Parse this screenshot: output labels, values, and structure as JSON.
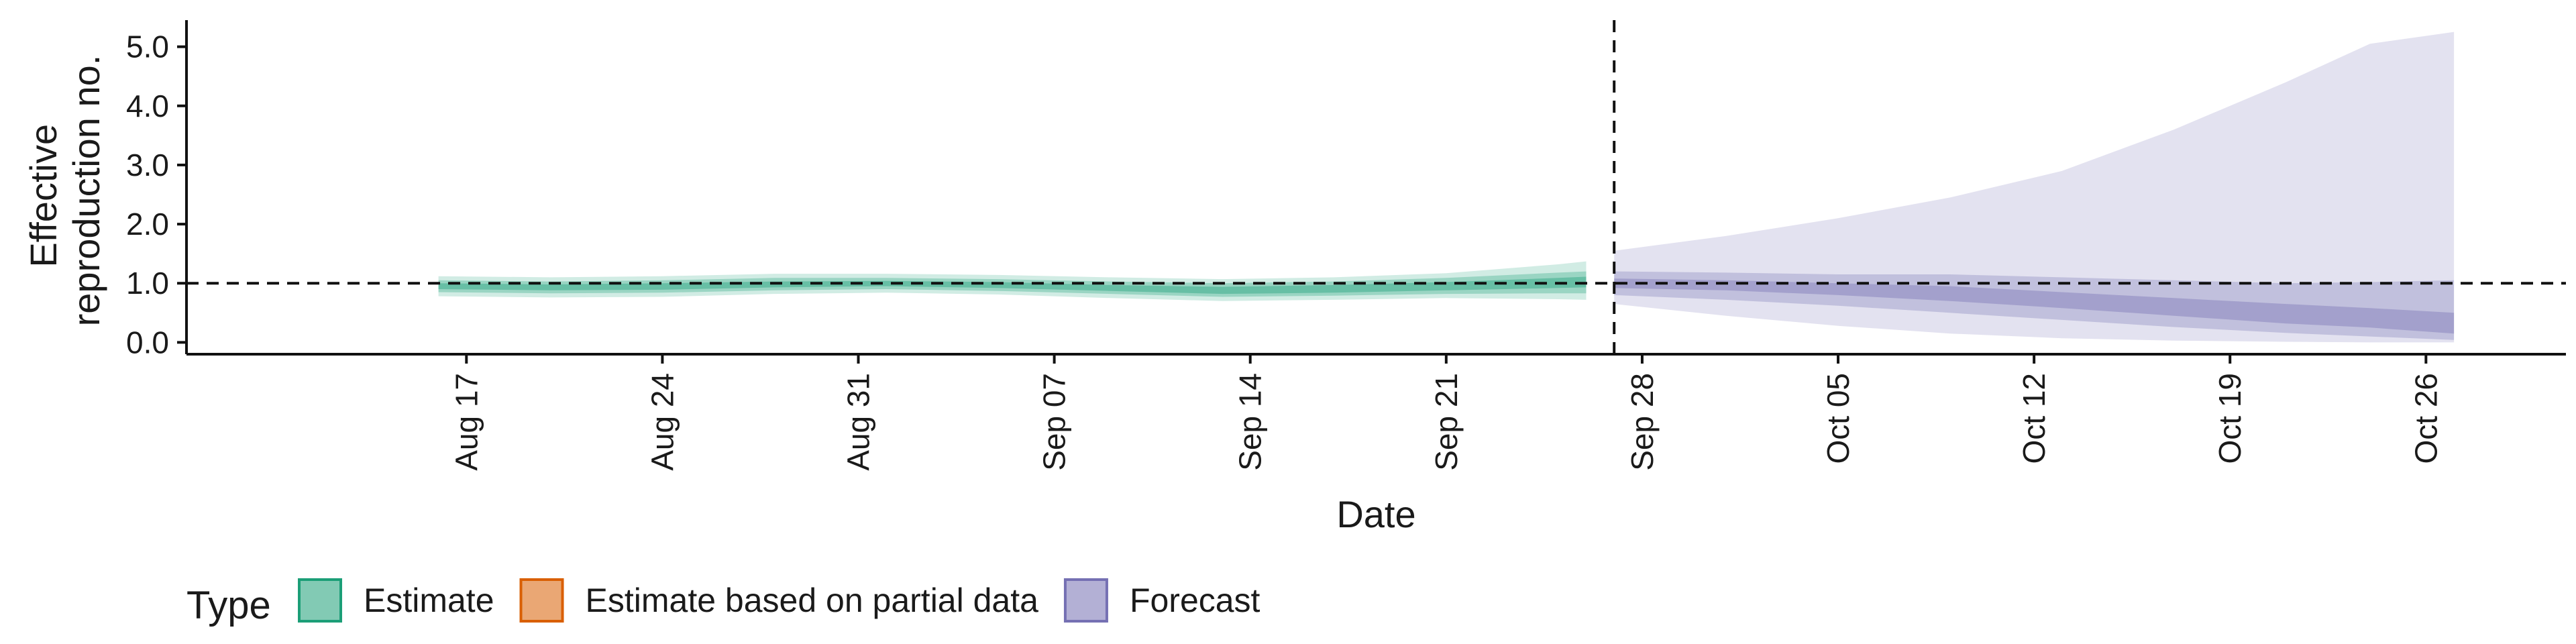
{
  "chart_data": {
    "type": "area",
    "xlabel": "Date",
    "ylabel_lines": [
      "Effective",
      "reproduction no."
    ],
    "ylim": [
      -0.2,
      5.45
    ],
    "y_ticks": [
      {
        "value": 0,
        "label": "0.0"
      },
      {
        "value": 1,
        "label": "1.0"
      },
      {
        "value": 2,
        "label": "2.0"
      },
      {
        "value": 3,
        "label": "3.0"
      },
      {
        "value": 4,
        "label": "4.0"
      },
      {
        "value": 5,
        "label": "5.0"
      }
    ],
    "x_range": [
      "2020-08-07",
      "2020-10-31"
    ],
    "x_ticks": [
      {
        "date": "2020-08-17",
        "label": "Aug 17"
      },
      {
        "date": "2020-08-24",
        "label": "Aug 24"
      },
      {
        "date": "2020-08-31",
        "label": "Aug 31"
      },
      {
        "date": "2020-09-07",
        "label": "Sep 07"
      },
      {
        "date": "2020-09-14",
        "label": "Sep 14"
      },
      {
        "date": "2020-09-21",
        "label": "Sep 21"
      },
      {
        "date": "2020-09-28",
        "label": "Sep 28"
      },
      {
        "date": "2020-10-05",
        "label": "Oct 05"
      },
      {
        "date": "2020-10-12",
        "label": "Oct 12"
      },
      {
        "date": "2020-10-19",
        "label": "Oct 19"
      },
      {
        "date": "2020-10-26",
        "label": "Oct 26"
      }
    ],
    "reference_line_y": 1.0,
    "forecast_date": "2020-09-27",
    "legend": {
      "title": "Type",
      "position": "bottom",
      "items": [
        {
          "label": "Estimate",
          "fill": "#1b9e77",
          "border": "#1b9e77"
        },
        {
          "label": "Estimate based on partial data",
          "fill": "#d95f02",
          "border": "#d95f02"
        },
        {
          "label": "Forecast",
          "fill": "#7570b3",
          "border": "#7570b3"
        }
      ]
    },
    "series": [
      {
        "name": "Estimate",
        "color": "#1b9e77",
        "x": [
          "2020-08-16",
          "2020-08-20",
          "2020-08-24",
          "2020-08-28",
          "2020-09-01",
          "2020-09-05",
          "2020-09-09",
          "2020-09-13",
          "2020-09-17",
          "2020-09-21",
          "2020-09-25",
          "2020-09-26"
        ],
        "median": [
          0.95,
          0.93,
          0.94,
          0.98,
          0.99,
          0.97,
          0.92,
          0.88,
          0.9,
          0.95,
          1.0,
          1.02
        ],
        "inner_lower": [
          0.9,
          0.88,
          0.89,
          0.93,
          0.95,
          0.92,
          0.87,
          0.82,
          0.84,
          0.88,
          0.92,
          0.93
        ],
        "inner_upper": [
          1.0,
          0.98,
          1.0,
          1.03,
          1.04,
          1.02,
          0.97,
          0.94,
          0.97,
          1.02,
          1.09,
          1.11
        ],
        "mid_lower": [
          0.85,
          0.83,
          0.84,
          0.88,
          0.9,
          0.87,
          0.82,
          0.77,
          0.79,
          0.82,
          0.83,
          0.83
        ],
        "mid_upper": [
          1.05,
          1.03,
          1.05,
          1.09,
          1.09,
          1.07,
          1.03,
          1.0,
          1.03,
          1.09,
          1.18,
          1.2
        ],
        "outer_lower": [
          0.78,
          0.76,
          0.77,
          0.82,
          0.84,
          0.81,
          0.75,
          0.7,
          0.72,
          0.75,
          0.73,
          0.72
        ],
        "outer_upper": [
          1.12,
          1.1,
          1.12,
          1.16,
          1.16,
          1.14,
          1.1,
          1.07,
          1.1,
          1.17,
          1.32,
          1.37
        ]
      },
      {
        "name": "Forecast",
        "color": "#7570b3",
        "x": [
          "2020-09-27",
          "2020-10-01",
          "2020-10-05",
          "2020-10-09",
          "2020-10-13",
          "2020-10-17",
          "2020-10-21",
          "2020-10-24",
          "2020-10-27"
        ],
        "median": [
          1.0,
          0.95,
          0.9,
          0.82,
          0.72,
          0.62,
          0.5,
          0.42,
          0.35
        ],
        "inner_lower": [
          0.92,
          0.88,
          0.8,
          0.7,
          0.58,
          0.45,
          0.32,
          0.25,
          0.15
        ],
        "inner_upper": [
          1.08,
          1.05,
          1.0,
          0.95,
          0.85,
          0.75,
          0.65,
          0.58,
          0.5
        ],
        "mid_lower": [
          0.8,
          0.72,
          0.62,
          0.5,
          0.38,
          0.26,
          0.16,
          0.1,
          0.04
        ],
        "mid_upper": [
          1.2,
          1.18,
          1.15,
          1.15,
          1.1,
          1.05,
          1.0,
          1.02,
          1.05
        ],
        "outer_lower": [
          0.65,
          0.45,
          0.28,
          0.15,
          0.07,
          0.03,
          0.01,
          0.0,
          0.0
        ],
        "outer_upper": [
          1.55,
          1.8,
          2.1,
          2.45,
          2.9,
          3.6,
          4.4,
          5.05,
          5.25
        ]
      }
    ]
  }
}
